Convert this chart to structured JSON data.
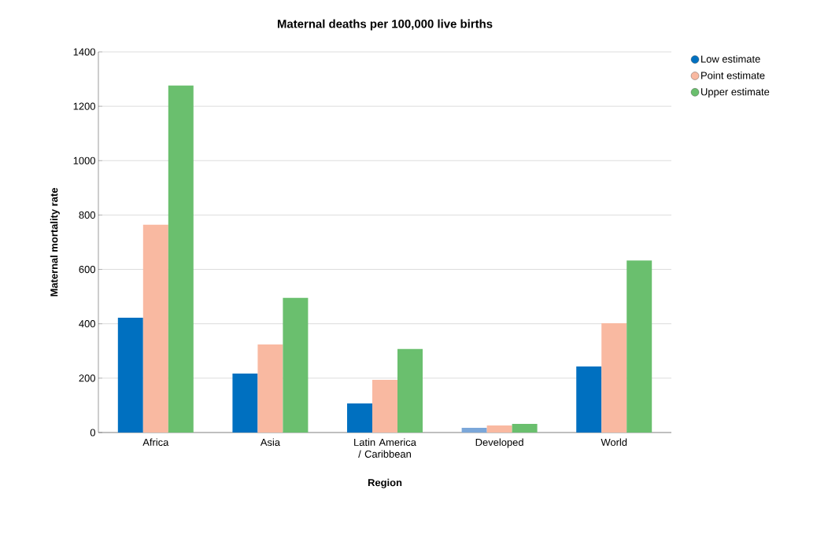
{
  "chart_data": {
    "type": "bar",
    "title": "Maternal deaths per 100,000 live births",
    "xlabel": "Region",
    "ylabel": "Maternal mortality rate",
    "categories": [
      "Africa",
      "Asia",
      "Latin America / Caribbean",
      "Developed",
      "World"
    ],
    "series": [
      {
        "name": "Low estimate",
        "color": "#0070c0",
        "colors": [
          "#0070c0",
          "#0070c0",
          "#0070c0",
          "#7ba7d9",
          "#0070c0"
        ],
        "values": [
          422,
          217,
          107,
          17,
          243
        ]
      },
      {
        "name": "Point estimate",
        "color": "#f9b9a1",
        "values": [
          764,
          324,
          194,
          26,
          402
        ]
      },
      {
        "name": "Upper estimate",
        "color": "#6abf6e",
        "values": [
          1276,
          495,
          307,
          32,
          633
        ]
      }
    ],
    "ylim": [
      0,
      1400
    ],
    "yticks": [
      0,
      200,
      400,
      600,
      800,
      1000,
      1200,
      1400
    ],
    "grid": "y",
    "legend": "top right"
  }
}
